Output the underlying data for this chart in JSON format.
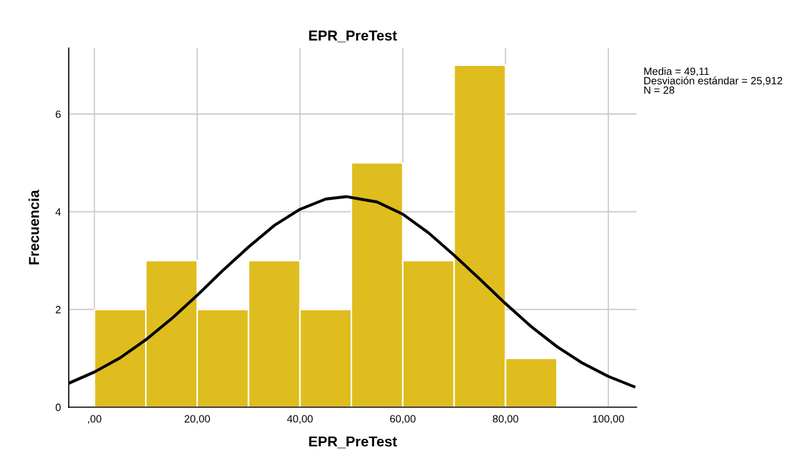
{
  "chart_data": {
    "type": "histogram",
    "title": "EPR_PreTest",
    "xlabel": "EPR_PreTest",
    "ylabel": "Frecuencia",
    "bins": [
      0,
      10,
      20,
      30,
      40,
      50,
      60,
      70,
      80,
      90
    ],
    "values": [
      2,
      3,
      2,
      3,
      2,
      5,
      3,
      7,
      1
    ],
    "color": "#dfbd1f",
    "series": [
      {
        "type": "line",
        "color": "#000000",
        "x": [
          -5,
          0,
          5,
          10,
          15,
          20,
          25,
          30,
          35,
          40,
          45,
          49,
          55,
          60,
          65,
          70,
          75,
          80,
          85,
          90,
          95,
          100,
          105
        ],
        "values": [
          0.49,
          0.72,
          1.01,
          1.38,
          1.81,
          2.29,
          2.8,
          3.28,
          3.72,
          4.05,
          4.26,
          4.31,
          4.2,
          3.95,
          3.57,
          3.11,
          2.62,
          2.12,
          1.65,
          1.24,
          0.9,
          0.63,
          0.42
        ]
      }
    ],
    "xlim": [
      -5,
      105.5
    ],
    "ylim": [
      0,
      7.35
    ],
    "xticks": [
      {
        "value": 0,
        "label": ",00"
      },
      {
        "value": 20,
        "label": "20,00"
      },
      {
        "value": 40,
        "label": "40,00"
      },
      {
        "value": 60,
        "label": "60,00"
      },
      {
        "value": 80,
        "label": "80,00"
      },
      {
        "value": 100,
        "label": "100,00"
      }
    ],
    "yticks": [
      0,
      2,
      4,
      6
    ],
    "grid": true,
    "annotations": [
      "Media = 49,11\nDesviación estándar = 25,912\nN = 28"
    ]
  }
}
